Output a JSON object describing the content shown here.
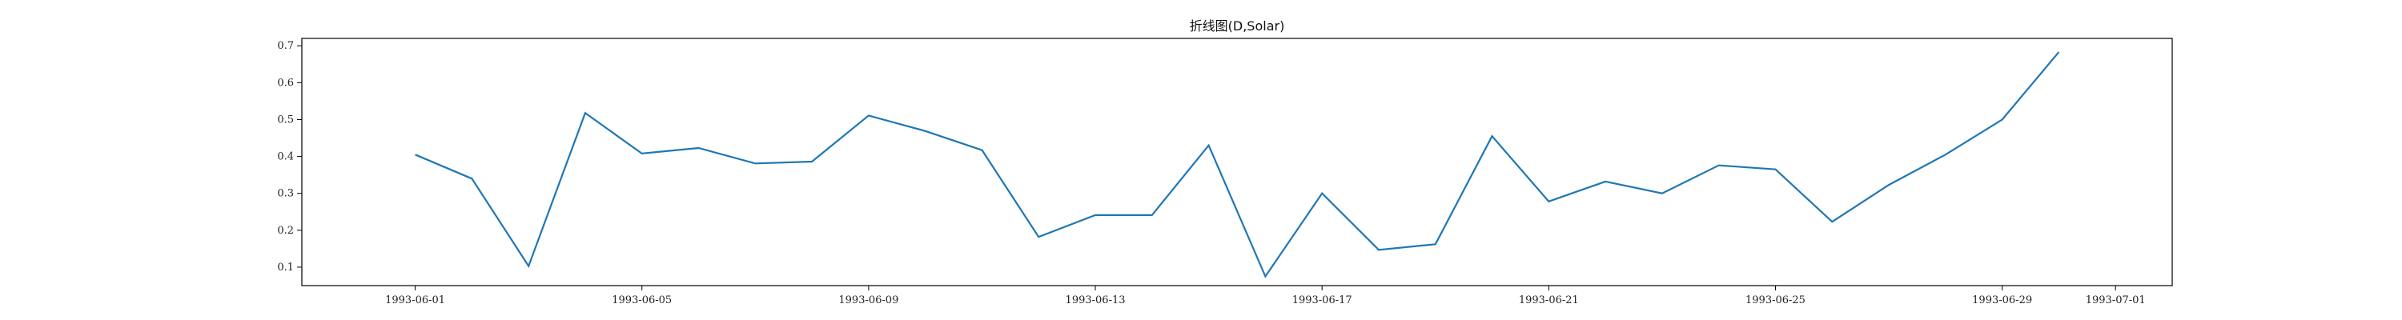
{
  "chart_data": {
    "type": "line",
    "title": "折线图(D,Solar)",
    "xlabel": "",
    "ylabel": "",
    "grid": false,
    "legend": "none",
    "xlim": [
      "1993-05-30",
      "1993-07-02"
    ],
    "ylim": [
      0.05,
      0.72
    ],
    "y_ticks": [
      0.1,
      0.2,
      0.3,
      0.4,
      0.5,
      0.6,
      0.7
    ],
    "y_tick_labels": [
      "0.1",
      "0.2",
      "0.3",
      "0.4",
      "0.5",
      "0.6",
      "0.7"
    ],
    "x_ticks": [
      "1993-06-01",
      "1993-06-05",
      "1993-06-09",
      "1993-06-13",
      "1993-06-17",
      "1993-06-21",
      "1993-06-25",
      "1993-06-29",
      "1993-07-01"
    ],
    "series": [
      {
        "color": "#1f77b4",
        "x": [
          "1993-06-01",
          "1993-06-02",
          "1993-06-03",
          "1993-06-04",
          "1993-06-05",
          "1993-06-06",
          "1993-06-07",
          "1993-06-08",
          "1993-06-09",
          "1993-06-10",
          "1993-06-11",
          "1993-06-12",
          "1993-06-13",
          "1993-06-14",
          "1993-06-15",
          "1993-06-16",
          "1993-06-17",
          "1993-06-18",
          "1993-06-19",
          "1993-06-20",
          "1993-06-21",
          "1993-06-22",
          "1993-06-23",
          "1993-06-24",
          "1993-06-25",
          "1993-06-26",
          "1993-06-27",
          "1993-06-28",
          "1993-06-29",
          "1993-06-30"
        ],
        "values": [
          0.405,
          0.34,
          0.103,
          0.518,
          0.408,
          0.423,
          0.381,
          0.386,
          0.511,
          0.469,
          0.417,
          0.182,
          0.241,
          0.241,
          0.43,
          0.075,
          0.3,
          0.147,
          0.162,
          0.455,
          0.278,
          0.332,
          0.3,
          0.376,
          0.365,
          0.223,
          0.323,
          0.405,
          0.5,
          0.683
        ]
      }
    ]
  }
}
